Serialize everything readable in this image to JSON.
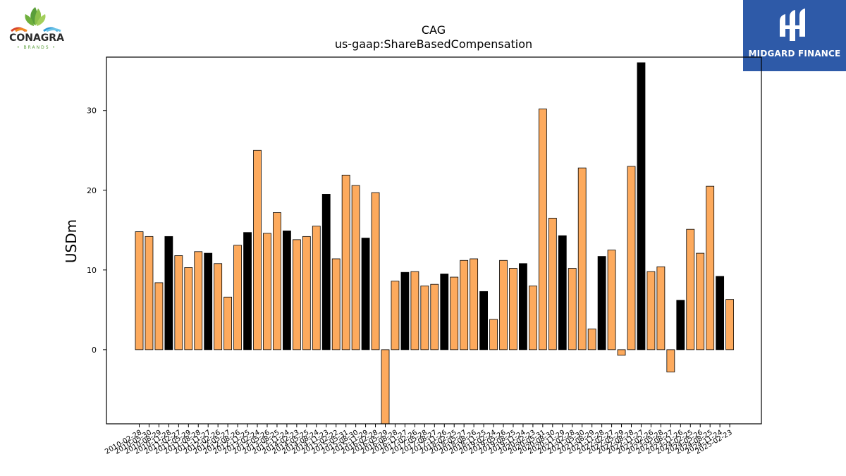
{
  "logos": {
    "left_brand": "CONAGRA",
    "left_sub": "• BRANDS •",
    "right_brand": "MIDGARD FINANCE"
  },
  "colors": {
    "bar_default": "#fdaa5d",
    "bar_highlight": "#000000",
    "bar_edge": "#000000",
    "brand_blue": "#2e5aa8"
  },
  "chart_data": {
    "type": "bar",
    "title": "CAG",
    "subtitle": "us-gaap:ShareBasedCompensation",
    "xlabel": "",
    "ylabel": "USDm",
    "ylim": [
      -9.3,
      36.7
    ],
    "yticks": [
      0,
      10,
      20,
      30
    ],
    "grid": false,
    "categories": [
      "2010-02-28",
      "2010-05-30",
      "2010-08-29",
      "2010-11-28",
      "2011-02-27",
      "2011-05-29",
      "2011-08-28",
      "2011-11-27",
      "2012-02-26",
      "2012-05-27",
      "2012-08-26",
      "2012-11-25",
      "2013-02-24",
      "2013-05-26",
      "2013-08-25",
      "2013-11-24",
      "2014-02-23",
      "2014-05-25",
      "2014-08-24",
      "2014-11-23",
      "2015-02-22",
      "2015-05-31",
      "2015-08-30",
      "2015-11-29",
      "2016-02-28",
      "2016-05-29",
      "2016-08-28",
      "2016-11-27",
      "2017-02-26",
      "2017-05-28",
      "2017-08-27",
      "2017-11-26",
      "2018-02-25",
      "2018-05-27",
      "2018-08-26",
      "2018-11-25",
      "2019-02-24",
      "2019-05-26",
      "2019-08-25",
      "2019-11-24",
      "2020-02-23",
      "2020-05-31",
      "2020-08-30",
      "2020-11-29",
      "2021-02-28",
      "2021-05-30",
      "2021-08-29",
      "2021-11-28",
      "2022-02-27",
      "2022-05-29",
      "2022-08-28",
      "2022-11-27",
      "2023-02-26",
      "2023-05-28",
      "2023-08-27",
      "2023-11-26",
      "2024-02-25",
      "2024-05-26",
      "2024-08-25",
      "2024-11-24",
      "2025-02-23"
    ],
    "values": [
      14.8,
      14.2,
      8.4,
      14.2,
      11.8,
      10.3,
      12.3,
      12.1,
      10.8,
      6.6,
      13.1,
      14.7,
      25.0,
      14.6,
      17.2,
      14.9,
      13.8,
      14.2,
      15.5,
      19.5,
      11.4,
      21.9,
      20.6,
      14.0,
      19.7,
      -9.3,
      8.6,
      9.7,
      9.8,
      8.0,
      8.2,
      9.5,
      9.1,
      11.2,
      11.4,
      7.3,
      3.8,
      11.2,
      10.2,
      10.8,
      8.0,
      30.2,
      16.5,
      14.3,
      10.2,
      22.8,
      2.6,
      11.7,
      12.5,
      -0.7,
      23.0,
      36.0,
      9.8,
      10.4,
      -2.8,
      6.2,
      15.1,
      12.1,
      20.5,
      9.2,
      6.3
    ],
    "highlight": [
      false,
      false,
      false,
      true,
      false,
      false,
      false,
      true,
      false,
      false,
      false,
      true,
      false,
      false,
      false,
      true,
      false,
      false,
      false,
      true,
      false,
      false,
      false,
      true,
      false,
      false,
      false,
      true,
      false,
      false,
      false,
      true,
      false,
      false,
      false,
      true,
      false,
      false,
      false,
      true,
      false,
      false,
      false,
      true,
      false,
      false,
      false,
      true,
      false,
      false,
      false,
      true,
      false,
      false,
      false,
      true,
      false,
      false,
      false,
      true,
      false
    ]
  }
}
